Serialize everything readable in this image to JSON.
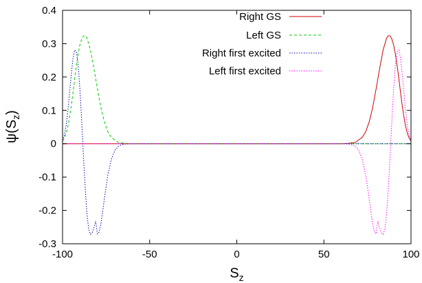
{
  "chart_data": {
    "type": "line",
    "title": "",
    "xlabel": "S",
    "xlabel_sub": "z",
    "ylabel_pre": "ψ(S",
    "ylabel_sub": "z",
    "ylabel_post": ")",
    "xlim": [
      -100,
      100
    ],
    "ylim": [
      -0.3,
      0.4
    ],
    "xticks": [
      -100,
      -50,
      0,
      50,
      100
    ],
    "xtick_labels": [
      "-100",
      "-50",
      "0",
      "50",
      "100"
    ],
    "yticks": [
      -0.3,
      -0.2,
      -0.1,
      0,
      0.1,
      0.2,
      0.3,
      0.4
    ],
    "ytick_labels": [
      "-0.3",
      "-0.2",
      "-0.1",
      "0",
      "0.1",
      "0.2",
      "0.3",
      "0.4"
    ],
    "grid": false,
    "legend_position": "top-right",
    "series": [
      {
        "name": "Right GS",
        "color": "#cc0000",
        "dash": "solid",
        "x": [
          -100,
          60,
          64,
          68,
          72,
          74,
          76,
          78,
          80,
          82,
          84,
          86,
          87,
          88,
          89,
          90,
          91,
          92,
          93,
          94,
          95,
          96,
          97,
          98,
          99,
          100
        ],
        "y": [
          0,
          0,
          0.001,
          0.004,
          0.019,
          0.036,
          0.066,
          0.108,
          0.165,
          0.226,
          0.281,
          0.317,
          0.324,
          0.323,
          0.314,
          0.297,
          0.27,
          0.236,
          0.196,
          0.153,
          0.113,
          0.078,
          0.05,
          0.03,
          0.016,
          0.008
        ]
      },
      {
        "name": "Left GS",
        "color": "#00cc00",
        "dash": "dashed",
        "x": [
          -100,
          -99,
          -98,
          -97,
          -96,
          -95,
          -94,
          -93,
          -92,
          -91,
          -90,
          -89,
          -88,
          -87,
          -86,
          -84,
          -82,
          -80,
          -78,
          -76,
          -74,
          -72,
          -68,
          -64,
          -60,
          100
        ],
        "y": [
          0.008,
          0.016,
          0.03,
          0.05,
          0.078,
          0.113,
          0.153,
          0.196,
          0.236,
          0.27,
          0.297,
          0.314,
          0.323,
          0.324,
          0.317,
          0.281,
          0.226,
          0.165,
          0.108,
          0.066,
          0.036,
          0.019,
          0.004,
          0.001,
          0,
          0
        ]
      },
      {
        "name": "Right first excited",
        "color": "#0000aa",
        "dash": "dotted",
        "x": [
          -100,
          -99,
          -98,
          -97,
          -96,
          -95,
          -94,
          -93,
          -92,
          -91,
          -90,
          -89,
          -88,
          -87,
          -86,
          -85,
          -84,
          -83,
          -82,
          -81,
          -80,
          -79,
          -78,
          -77,
          -76,
          -75,
          -74,
          -72,
          -70,
          -68,
          -66,
          -64,
          -60,
          100
        ],
        "y": [
          0.01,
          0.025,
          0.052,
          0.095,
          0.15,
          0.208,
          0.256,
          0.281,
          0.274,
          0.234,
          0.162,
          0.068,
          -0.037,
          -0.135,
          -0.211,
          -0.256,
          -0.272,
          -0.267,
          -0.252,
          -0.232,
          -0.27,
          -0.265,
          -0.24,
          -0.205,
          -0.166,
          -0.128,
          -0.094,
          -0.047,
          -0.02,
          -0.008,
          -0.003,
          -0.001,
          0,
          0
        ]
      },
      {
        "name": "Left first excited",
        "color": "#ff00ff",
        "dash": "dotted",
        "x": [
          -100,
          60,
          64,
          66,
          68,
          70,
          72,
          74,
          75,
          76,
          77,
          78,
          79,
          80,
          81,
          82,
          83,
          84,
          85,
          86,
          87,
          88,
          89,
          90,
          91,
          92,
          93,
          94,
          95,
          96,
          97,
          98,
          99,
          100
        ],
        "y": [
          0,
          0,
          -0.001,
          -0.003,
          -0.008,
          -0.02,
          -0.047,
          -0.094,
          -0.128,
          -0.166,
          -0.205,
          -0.24,
          -0.265,
          -0.27,
          -0.232,
          -0.252,
          -0.267,
          -0.272,
          -0.256,
          -0.211,
          -0.135,
          -0.037,
          0.068,
          0.162,
          0.234,
          0.274,
          0.281,
          0.256,
          0.208,
          0.15,
          0.095,
          0.052,
          0.025,
          0.01
        ]
      }
    ]
  }
}
